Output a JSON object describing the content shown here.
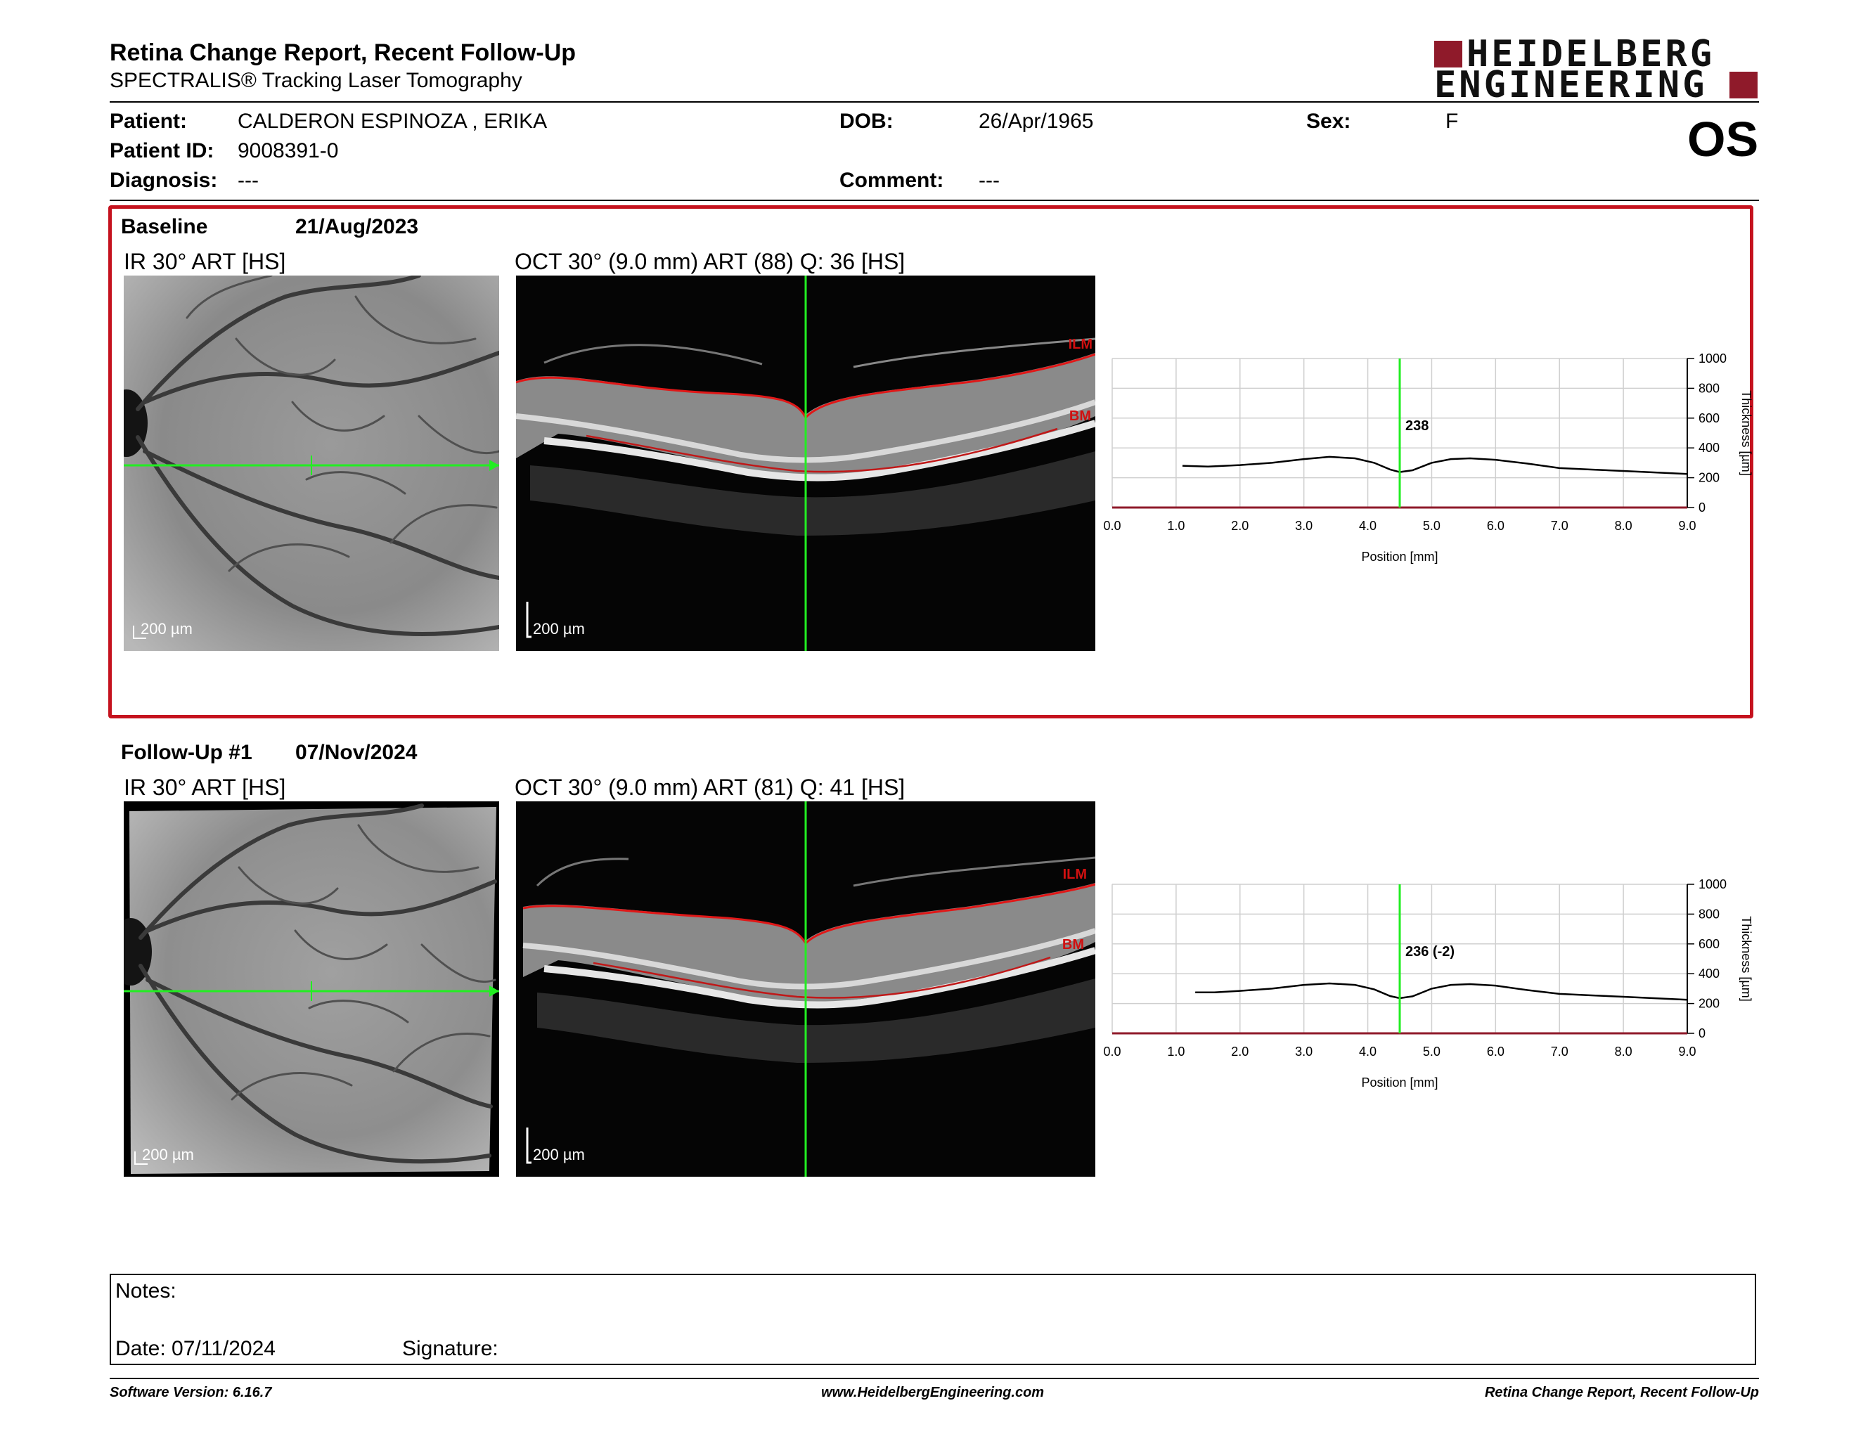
{
  "header": {
    "title": "Retina Change Report, Recent Follow-Up",
    "subtitle": "SPECTRALIS® Tracking Laser Tomography",
    "logo_line1": "HEIDELBERG",
    "logo_line2": "ENGINEERING",
    "eye": "OS"
  },
  "patient": {
    "patient_label": "Patient:",
    "patient_value": "CALDERON ESPINOZA , ERIKA",
    "dob_label": "DOB:",
    "dob_value": "26/Apr/1965",
    "sex_label": "Sex:",
    "sex_value": "F",
    "id_label": "Patient ID:",
    "id_value": "9008391-0",
    "diagnosis_label": "Diagnosis:",
    "diagnosis_value": "---",
    "comment_label": "Comment:",
    "comment_value": "---"
  },
  "baseline": {
    "label": "Baseline",
    "date": "21/Aug/2023",
    "ir_title": "IR 30° ART [HS]",
    "oct_title": "OCT 30° (9.0 mm) ART (88) Q: 36 [HS]",
    "scale_bar": "200 µm",
    "ilm": "ILM",
    "bm": "BM"
  },
  "followup": {
    "label": "Follow-Up #1",
    "date": "07/Nov/2024",
    "ir_title": "IR 30° ART [HS]",
    "oct_title": "OCT 30° (9.0 mm) ART (81) Q: 41 [HS]",
    "scale_bar": "200 µm",
    "ilm": "ILM",
    "bm": "BM"
  },
  "chart_data": [
    {
      "type": "line",
      "xlabel": "Position [mm]",
      "ylabel": "Thickness [µm]",
      "xlim": [
        0,
        9
      ],
      "ylim": [
        0,
        1000
      ],
      "x_ticks": [
        "0.0",
        "1.0",
        "2.0",
        "3.0",
        "4.0",
        "5.0",
        "6.0",
        "7.0",
        "8.0",
        "9.0"
      ],
      "y_ticks": [
        "0",
        "200",
        "400",
        "600",
        "800",
        "1000"
      ],
      "marker_x": 4.5,
      "marker_label": "238",
      "x": [
        1.1,
        1.5,
        2.0,
        2.5,
        3.0,
        3.4,
        3.8,
        4.1,
        4.35,
        4.5,
        4.7,
        5.0,
        5.3,
        5.6,
        6.0,
        6.5,
        7.0,
        7.5,
        8.0,
        8.5,
        9.0
      ],
      "values": [
        280,
        275,
        285,
        300,
        325,
        340,
        330,
        300,
        255,
        238,
        250,
        300,
        325,
        330,
        320,
        295,
        265,
        255,
        245,
        235,
        225
      ],
      "grid": true
    },
    {
      "type": "line",
      "xlabel": "Position [mm]",
      "ylabel": "Thickness [µm]",
      "xlim": [
        0,
        9
      ],
      "ylim": [
        0,
        1000
      ],
      "x_ticks": [
        "0.0",
        "1.0",
        "2.0",
        "3.0",
        "4.0",
        "5.0",
        "6.0",
        "7.0",
        "8.0",
        "9.0"
      ],
      "y_ticks": [
        "0",
        "200",
        "400",
        "600",
        "800",
        "1000"
      ],
      "marker_x": 4.5,
      "marker_label": "236 (-2)",
      "x": [
        1.3,
        1.6,
        2.0,
        2.5,
        3.0,
        3.4,
        3.8,
        4.1,
        4.35,
        4.5,
        4.7,
        5.0,
        5.3,
        5.6,
        6.0,
        6.5,
        7.0,
        7.5,
        8.0,
        8.5,
        9.0
      ],
      "values": [
        275,
        275,
        285,
        300,
        325,
        335,
        325,
        295,
        250,
        236,
        248,
        300,
        325,
        330,
        320,
        290,
        265,
        255,
        245,
        235,
        225
      ],
      "grid": true
    }
  ],
  "notes": {
    "notes_label": "Notes:",
    "date_label": "Date: 07/11/2024",
    "signature_label": "Signature:"
  },
  "footer": {
    "software": "Software Version: 6.16.7",
    "url": "www.HeidelbergEngineering.com",
    "report": "Retina Change Report, Recent Follow-Up"
  }
}
